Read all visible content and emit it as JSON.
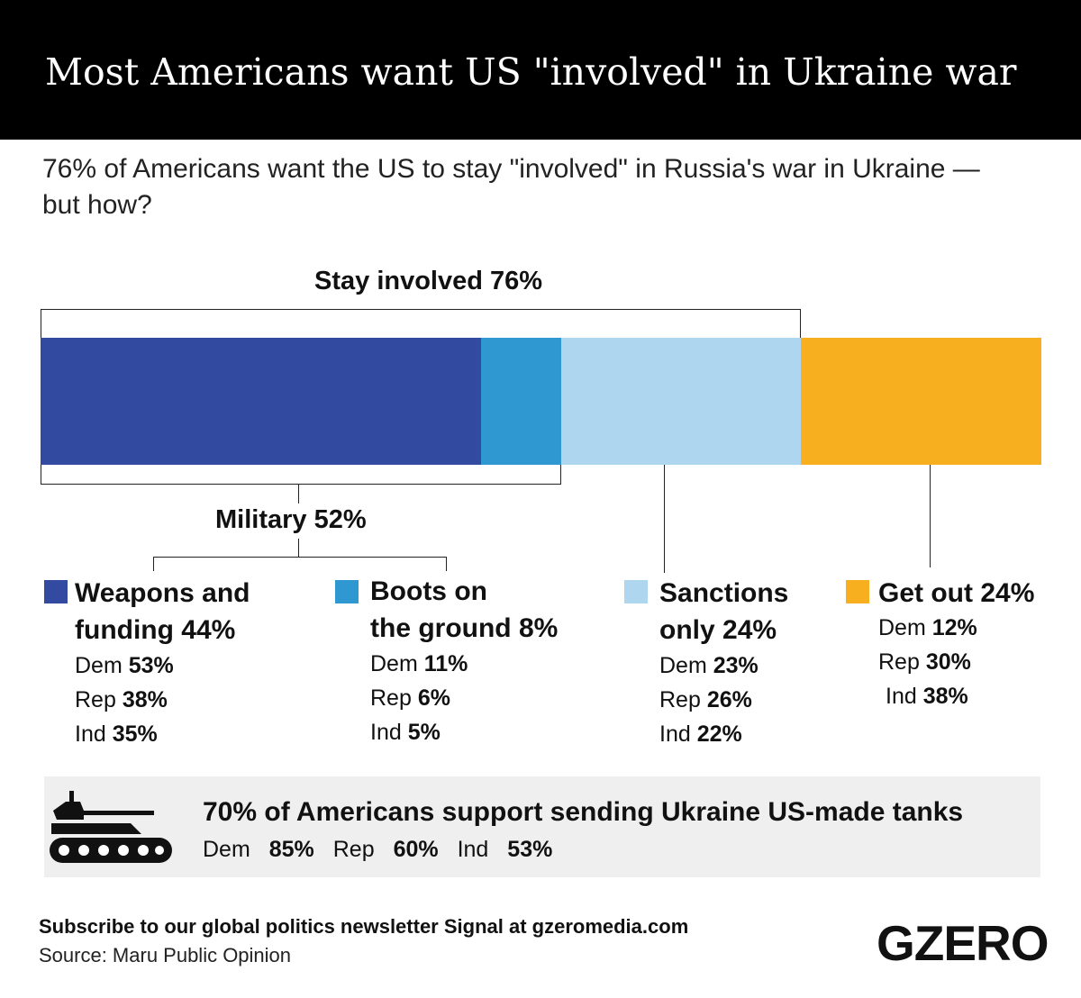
{
  "title": "Most Americans want US \"involved\" in Ukraine war",
  "subtitle": "76% of Americans want the US to stay \"involved\" in Russia's war in Ukraine — but how?",
  "colors": {
    "header_bg": "#000000",
    "weapons": "#324a9f",
    "boots": "#2f98d1",
    "sanctions": "#aed6ee",
    "get_out": "#f7ae1f",
    "callout_bg": "#efefef"
  },
  "chart_data": {
    "type": "bar",
    "orientation": "horizontal-stacked-100",
    "segments": [
      {
        "key": "weapons",
        "label_line1": "Weapons and",
        "label_line2": "funding 44%",
        "value": 44,
        "breakdown": [
          {
            "party": "Dem",
            "value": "53%"
          },
          {
            "party": "Rep",
            "value": "38%"
          },
          {
            "party": "Ind",
            "value": "35%"
          }
        ]
      },
      {
        "key": "boots",
        "label_line1": "Boots on",
        "label_line2": "the ground 8%",
        "value": 8,
        "breakdown": [
          {
            "party": "Dem",
            "value": "11%"
          },
          {
            "party": "Rep",
            "value": "6%"
          },
          {
            "party": "Ind",
            "value": "5%"
          }
        ]
      },
      {
        "key": "sanctions",
        "label_line1": "Sanctions",
        "label_line2": "only 24%",
        "value": 24,
        "breakdown": [
          {
            "party": "Dem",
            "value": "23%"
          },
          {
            "party": "Rep",
            "value": "26%"
          },
          {
            "party": "Ind",
            "value": "22%"
          }
        ]
      },
      {
        "key": "get_out",
        "label_line1": "Get out 24%",
        "label_line2": "",
        "value": 24,
        "breakdown": [
          {
            "party": "Dem",
            "value": "12%"
          },
          {
            "party": "Rep",
            "value": "30%"
          },
          {
            "party": "Ind",
            "value": "38%"
          }
        ]
      }
    ],
    "groups": [
      {
        "label": "Stay involved 76%",
        "value": 76
      },
      {
        "label": "Military 52%",
        "value": 52
      }
    ],
    "xlim": [
      0,
      100
    ]
  },
  "callout": {
    "icon": "tank-icon",
    "headline": "70% of Americans support sending Ukraine US-made tanks",
    "breakdown": [
      {
        "party": "Dem",
        "value": "85%"
      },
      {
        "party": "Rep",
        "value": "60%"
      },
      {
        "party": "Ind",
        "value": "53%"
      }
    ]
  },
  "footer": {
    "subscribe": "Subscribe to our global politics newsletter Signal at gzeromedia.com",
    "source": "Source: Maru Public Opinion",
    "logo": "GZERO"
  }
}
